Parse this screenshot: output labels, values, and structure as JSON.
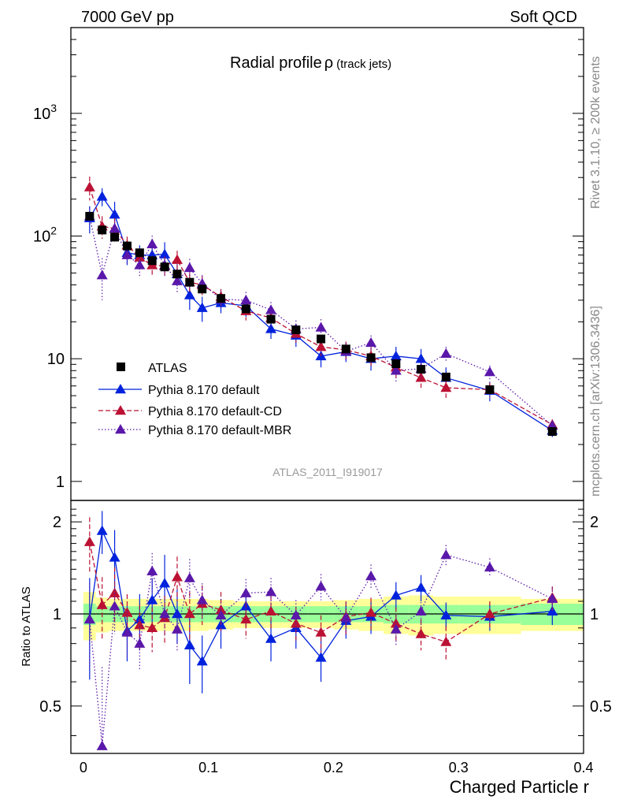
{
  "header": {
    "left": "7000 GeV pp",
    "right": "Soft QCD"
  },
  "side": {
    "rivet": "Rivet 3.1.10, ≥ 200k events",
    "mcplots": "mcplots.cern.ch [arXiv:1306.3436]"
  },
  "chart_data": {
    "type": "scatter",
    "title": "Radial profile",
    "title_symbol": "ρ",
    "title_suffix": "(track jets)",
    "analysis_id": "ATLAS_2011_I919017",
    "xlabel": "Charged Particle r",
    "ylabel_ratio": "Ratio to ATLAS",
    "xlim": [
      -0.01,
      0.4
    ],
    "ylim_main": [
      0.7,
      5000
    ],
    "yscale_main": "log",
    "ylim_ratio": [
      0.35,
      2.35
    ],
    "yscale_ratio": "log",
    "x_ticks": [
      "0",
      "0.1",
      "0.2",
      "0.3",
      "0.4"
    ],
    "y_ticks_main": [
      "1",
      "10",
      "10^2",
      "10^3"
    ],
    "y_ticks_ratio": [
      "0.5",
      "1",
      "2"
    ],
    "legend_position": "lower-left",
    "x": [
      0.005,
      0.015,
      0.025,
      0.035,
      0.045,
      0.055,
      0.065,
      0.075,
      0.085,
      0.095,
      0.11,
      0.13,
      0.15,
      0.17,
      0.19,
      0.21,
      0.23,
      0.25,
      0.27,
      0.29,
      0.325,
      0.375
    ],
    "series": [
      {
        "name": "ATLAS",
        "color": "#000000",
        "marker": "square",
        "values": [
          145,
          112,
          98,
          83,
          73,
          63,
          56,
          49,
          42,
          37,
          31,
          25.5,
          21,
          17.2,
          14.5,
          12,
          10.2,
          9.1,
          8.2,
          7.1,
          5.6,
          2.55
        ]
      },
      {
        "name": "Pythia 8.170 default",
        "color": "#0022dd",
        "marker": "triangle",
        "line": "solid",
        "values": [
          140,
          210,
          150,
          73,
          70,
          70,
          71,
          49,
          33,
          26,
          28.5,
          27,
          17.5,
          15.5,
          10.5,
          11.4,
          10,
          10.5,
          10,
          7,
          5.5,
          2.6
        ],
        "errors": [
          35,
          35,
          40,
          15,
          14,
          14,
          18,
          10,
          8,
          6,
          5,
          5,
          3,
          3,
          2,
          2,
          2,
          2,
          2,
          1.5,
          1,
          0.3
        ],
        "ratio": [
          0.96,
          1.87,
          1.53,
          0.88,
          0.96,
          1.11,
          1.26,
          1.0,
          0.79,
          0.7,
          0.92,
          1.06,
          0.83,
          0.9,
          0.72,
          0.95,
          0.98,
          1.15,
          1.22,
          0.99,
          0.98,
          1.02
        ],
        "ratio_errors": [
          0.35,
          0.3,
          0.35,
          0.18,
          0.2,
          0.2,
          0.3,
          0.2,
          0.2,
          0.15,
          0.15,
          0.15,
          0.13,
          0.13,
          0.12,
          0.12,
          0.12,
          0.12,
          0.12,
          0.1,
          0.1,
          0.1
        ]
      },
      {
        "name": "Pythia 8.170 default-CD",
        "color": "#bb1133",
        "marker": "triangle",
        "line": "dashed",
        "values": [
          250,
          120,
          115,
          84,
          67,
          58,
          57,
          64,
          42,
          40,
          32,
          24.5,
          21.5,
          16,
          12.5,
          11.8,
          10.5,
          8.5,
          7,
          5.8,
          5.6,
          2.9
        ],
        "errors": [
          55,
          25,
          25,
          15,
          12,
          11,
          11,
          12,
          8,
          7,
          5,
          4,
          3,
          2.5,
          2,
          2,
          2,
          1.5,
          1.2,
          1,
          0.8,
          0.3
        ],
        "ratio": [
          1.72,
          1.07,
          1.17,
          1.01,
          0.92,
          0.9,
          0.97,
          1.32,
          1.0,
          1.08,
          1.03,
          0.96,
          1.02,
          0.93,
          0.87,
          0.98,
          1.01,
          0.93,
          0.86,
          0.81,
          1.0,
          1.13
        ],
        "ratio_errors": [
          0.35,
          0.25,
          0.25,
          0.15,
          0.15,
          0.15,
          0.18,
          0.22,
          0.18,
          0.16,
          0.15,
          0.13,
          0.13,
          0.12,
          0.12,
          0.12,
          0.12,
          0.12,
          0.1,
          0.1,
          0.1,
          0.1
        ]
      },
      {
        "name": "Pythia 8.170 default-MBR",
        "color": "#5a18aa",
        "marker": "triangle",
        "line": "dotted",
        "values": [
          145,
          48,
          115,
          70,
          58,
          86,
          58,
          43,
          55,
          41,
          30.5,
          30,
          25,
          17.5,
          18,
          11.5,
          13.5,
          8,
          8.3,
          11,
          7.8,
          2.85
        ],
        "errors": [
          25,
          18,
          20,
          12,
          11,
          15,
          11,
          8,
          10,
          7,
          5,
          5,
          4,
          3,
          3,
          2,
          2,
          1.5,
          1.5,
          1.5,
          1,
          0.3
        ],
        "ratio": [
          0.96,
          0.37,
          1.06,
          0.87,
          0.8,
          1.38,
          1.0,
          0.89,
          1.31,
          1.11,
          0.99,
          1.17,
          1.18,
          0.99,
          1.23,
          0.97,
          1.33,
          0.89,
          1.02,
          1.56,
          1.42,
          1.12
        ],
        "ratio_errors": [
          0.3,
          0.3,
          0.2,
          0.15,
          0.15,
          0.2,
          0.15,
          0.13,
          0.2,
          0.15,
          0.13,
          0.13,
          0.13,
          0.12,
          0.12,
          0.12,
          0.12,
          0.1,
          0.1,
          0.12,
          0.1,
          0.1
        ]
      }
    ],
    "ratio_bands": {
      "edges": [
        0,
        0.01,
        0.02,
        0.03,
        0.04,
        0.05,
        0.06,
        0.07,
        0.08,
        0.09,
        0.1,
        0.12,
        0.14,
        0.16,
        0.18,
        0.2,
        0.22,
        0.24,
        0.26,
        0.28,
        0.3,
        0.35,
        0.4
      ],
      "inner_color": "#99ff99",
      "outer_color": "#ffff99",
      "inner_half": [
        0.08,
        0.06,
        0.06,
        0.06,
        0.06,
        0.06,
        0.06,
        0.06,
        0.06,
        0.06,
        0.06,
        0.06,
        0.06,
        0.06,
        0.06,
        0.06,
        0.06,
        0.07,
        0.07,
        0.07,
        0.07,
        0.08
      ],
      "outer_half": [
        0.18,
        0.13,
        0.12,
        0.12,
        0.12,
        0.12,
        0.12,
        0.12,
        0.12,
        0.12,
        0.11,
        0.1,
        0.1,
        0.1,
        0.1,
        0.11,
        0.12,
        0.14,
        0.15,
        0.14,
        0.14,
        0.12
      ]
    }
  }
}
